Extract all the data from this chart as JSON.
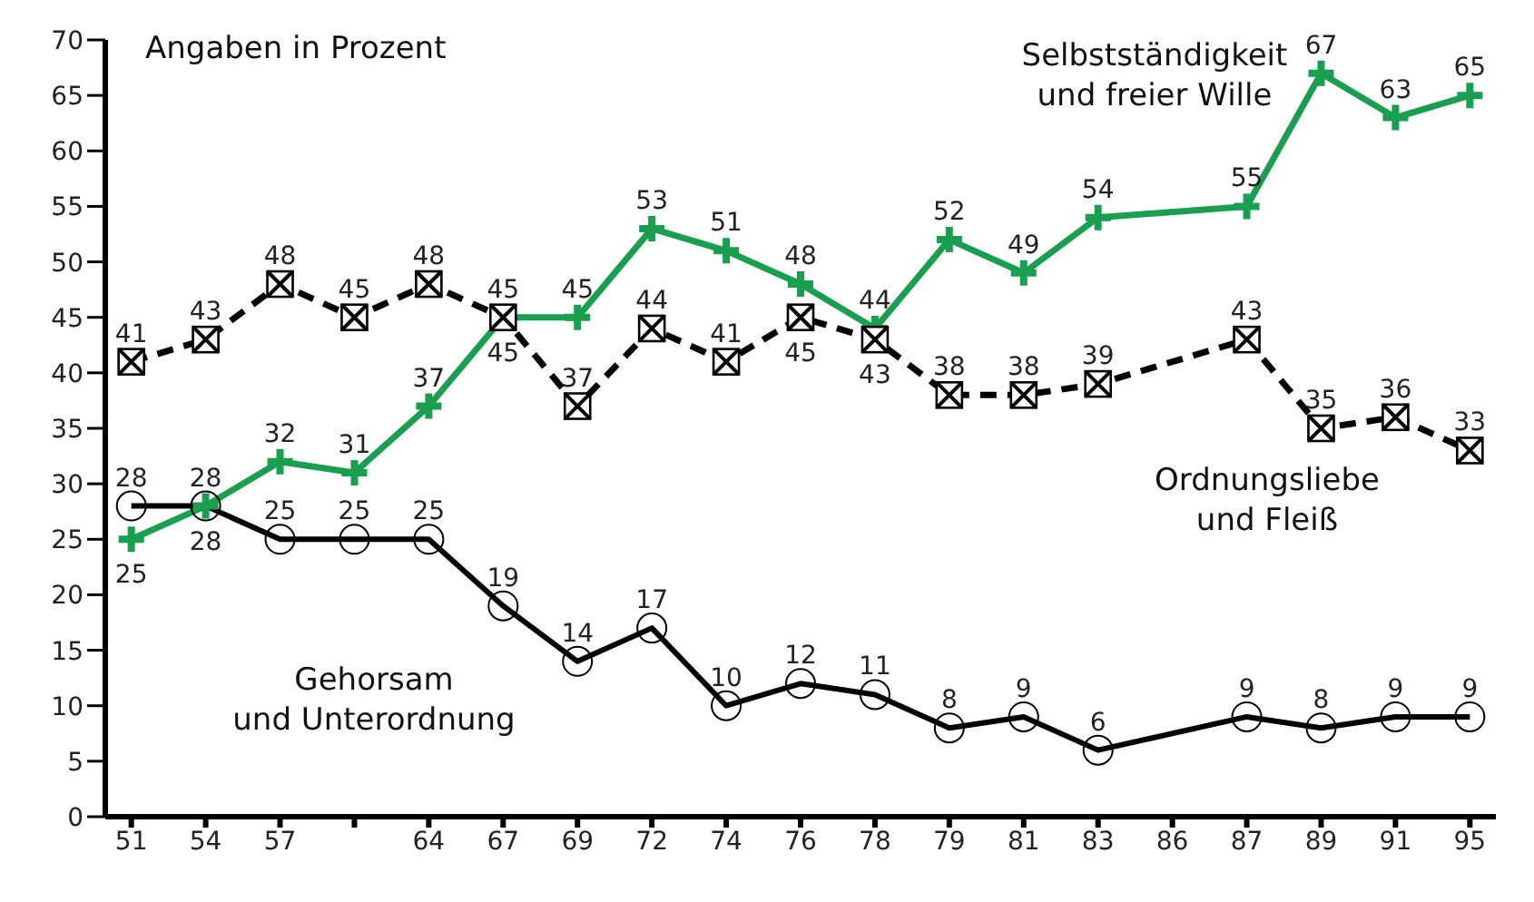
{
  "chart_data": {
    "type": "line",
    "annotations": [
      "Angaben in Prozent"
    ],
    "categories": [
      "51",
      "54",
      "57",
      null,
      "64",
      "67",
      "69",
      "72",
      "74",
      "76",
      "78",
      "79",
      "81",
      "83",
      "86",
      "87",
      "89",
      "91",
      "95"
    ],
    "ylim": [
      0,
      70
    ],
    "yticks": [
      0,
      5,
      10,
      15,
      20,
      25,
      30,
      35,
      40,
      45,
      50,
      55,
      60,
      65,
      70
    ],
    "data_labels": true,
    "series": [
      {
        "name": "Selbstständigkeit und freier Wille",
        "color": "#1a9e50",
        "marker": "cross",
        "line_style": "solid",
        "values": [
          25,
          28,
          32,
          31,
          37,
          45,
          45,
          53,
          51,
          48,
          44,
          52,
          49,
          54,
          null,
          55,
          67,
          63,
          65
        ]
      },
      {
        "name": "Ordnungsliebe und Fleiß",
        "color": "#000000",
        "marker": "square",
        "line_style": "dashed",
        "values": [
          41,
          43,
          48,
          45,
          48,
          45,
          37,
          44,
          41,
          45,
          43,
          38,
          38,
          39,
          null,
          43,
          35,
          36,
          33
        ]
      },
      {
        "name": "Gehorsam und Unterordnung",
        "color": "#000000",
        "marker": "circle",
        "line_style": "solid",
        "values": [
          28,
          28,
          25,
          25,
          25,
          19,
          14,
          17,
          10,
          12,
          11,
          8,
          9,
          6,
          null,
          9,
          8,
          9,
          9
        ]
      }
    ]
  }
}
